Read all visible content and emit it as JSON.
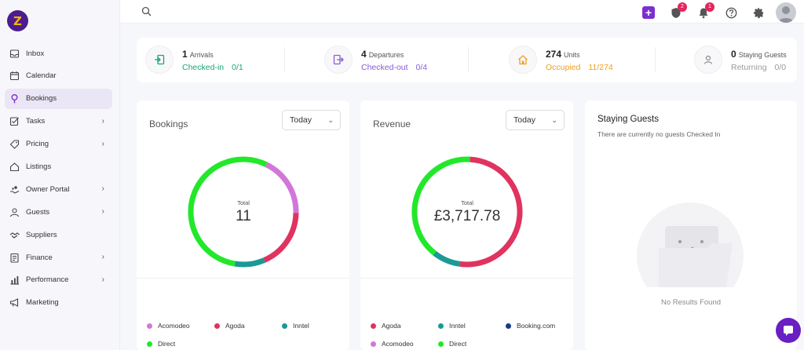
{
  "sidebar": {
    "logo": "Z",
    "items": [
      {
        "label": "Inbox",
        "icon": "inbox-icon",
        "has_children": false,
        "active": false
      },
      {
        "label": "Calendar",
        "icon": "calendar-icon",
        "has_children": false,
        "active": false
      },
      {
        "label": "Bookings",
        "icon": "bookings-icon",
        "has_children": false,
        "active": true
      },
      {
        "label": "Tasks",
        "icon": "tasks-icon",
        "has_children": true,
        "active": false
      },
      {
        "label": "Pricing",
        "icon": "pricing-tag-icon",
        "has_children": true,
        "active": false
      },
      {
        "label": "Listings",
        "icon": "listings-home-icon",
        "has_children": false,
        "active": false
      },
      {
        "label": "Owner Portal",
        "icon": "owner-portal-icon",
        "has_children": true,
        "active": false
      },
      {
        "label": "Guests",
        "icon": "guests-icon",
        "has_children": true,
        "active": false
      },
      {
        "label": "Suppliers",
        "icon": "suppliers-handshake-icon",
        "has_children": false,
        "active": false
      },
      {
        "label": "Finance",
        "icon": "finance-icon",
        "has_children": true,
        "active": false
      },
      {
        "label": "Performance",
        "icon": "performance-chart-icon",
        "has_children": true,
        "active": false
      },
      {
        "label": "Marketing",
        "icon": "marketing-megaphone-icon",
        "has_children": false,
        "active": false
      }
    ]
  },
  "topbar": {
    "shield_badge": "2",
    "bell_badge": "1"
  },
  "stats": {
    "arrivals": {
      "count": "1",
      "label": "Arrivals",
      "sub_label": "Checked-in",
      "sub_value": "0/1",
      "color": "#1ba672"
    },
    "departures": {
      "count": "4",
      "label": "Departures",
      "sub_label": "Checked-out",
      "sub_value": "0/4",
      "color": "#8a5cd6"
    },
    "units": {
      "count": "274",
      "label": "Units",
      "sub_label": "Occupied",
      "sub_value": "11/274",
      "color": "#f0a020"
    },
    "staying": {
      "count": "0",
      "label": "Staying Guests",
      "sub_label": "Returning",
      "sub_value": "0/0",
      "color": "#9a9aa3"
    }
  },
  "bookings": {
    "title": "Bookings",
    "period": "Today",
    "total_label": "Total",
    "total_value": "11",
    "legend": [
      {
        "name": "Acomodeo",
        "color": "#d277d9"
      },
      {
        "name": "Agoda",
        "color": "#e0335f"
      },
      {
        "name": "Inntel",
        "color": "#1a9a94"
      },
      {
        "name": "Direct",
        "color": "#22e82a"
      }
    ]
  },
  "revenue": {
    "title": "Revenue",
    "period": "Today",
    "total_label": "Total",
    "total_value": "£3,717.78",
    "legend": [
      {
        "name": "Agoda",
        "color": "#e0335f"
      },
      {
        "name": "Inntel",
        "color": "#1a9a94"
      },
      {
        "name": "Booking.com",
        "color": "#1a3a8a"
      },
      {
        "name": "Acomodeo",
        "color": "#d277d9"
      },
      {
        "name": "Direct",
        "color": "#22e82a"
      }
    ]
  },
  "staying_guests": {
    "title": "Staying Guests",
    "subtitle": "There are currently no guests Checked In",
    "empty_text": "No Results Found"
  },
  "chart_data": [
    {
      "type": "pie",
      "title": "Bookings",
      "categories": [
        "Acomodeo",
        "Agoda",
        "Inntel",
        "Direct"
      ],
      "values": [
        2,
        2,
        1,
        6
      ],
      "colors": [
        "#d277d9",
        "#e0335f",
        "#1a9a94",
        "#22e82a"
      ]
    },
    {
      "type": "pie",
      "title": "Revenue",
      "categories": [
        "Agoda",
        "Inntel",
        "Booking.com",
        "Acomodeo",
        "Direct"
      ],
      "values": [
        1909.0,
        316.0,
        0,
        0,
        1492.78
      ],
      "colors": [
        "#e0335f",
        "#1a9a94",
        "#1a3a8a",
        "#d277d9",
        "#22e82a"
      ]
    }
  ]
}
